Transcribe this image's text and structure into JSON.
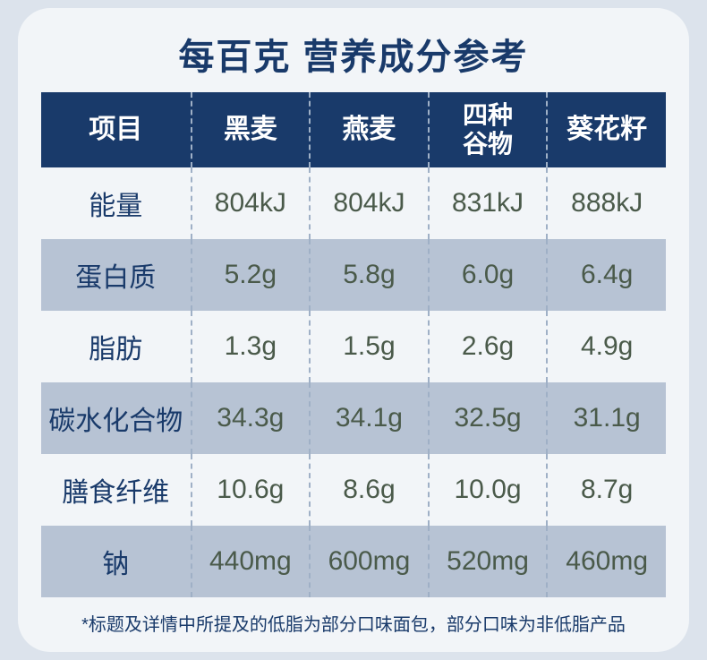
{
  "title": "每百克 营养成分参考",
  "columns": [
    "项目",
    "黑麦",
    "燕麦",
    "四种\n谷物",
    "葵花籽"
  ],
  "rows": [
    {
      "label": "能量",
      "values": [
        "804kJ",
        "804kJ",
        "831kJ",
        "888kJ"
      ]
    },
    {
      "label": "蛋白质",
      "values": [
        "5.2g",
        "5.8g",
        "6.0g",
        "6.4g"
      ]
    },
    {
      "label": "脂肪",
      "values": [
        "1.3g",
        "1.5g",
        "2.6g",
        "4.9g"
      ]
    },
    {
      "label": "碳水化合物",
      "values": [
        "34.3g",
        "34.1g",
        "32.5g",
        "31.1g"
      ]
    },
    {
      "label": "膳食纤维",
      "values": [
        "10.6g",
        "8.6g",
        "10.0g",
        "8.7g"
      ]
    },
    {
      "label": "钠",
      "values": [
        "440mg",
        "600mg",
        "520mg",
        "460mg"
      ]
    }
  ],
  "footnote": "*标题及详情中所提及的低脂为部分口味面包，部分口味为非低脂产品",
  "style": {
    "type": "table",
    "header_bg": "#193a6a",
    "header_text_color": "#ffffff",
    "row_odd_bg": "#f2f5f8",
    "row_even_bg": "#b7c3d4",
    "divider_color": "#9fb0c6",
    "title_color": "#193a6a",
    "value_color": "#4a5a4a",
    "card_bg": "#f2f5f8",
    "page_bg": "#dce3ec",
    "title_fontsize": 40,
    "header_fontsize": 30,
    "cell_fontsize": 30,
    "footnote_fontsize": 20,
    "border_radius": 36
  }
}
